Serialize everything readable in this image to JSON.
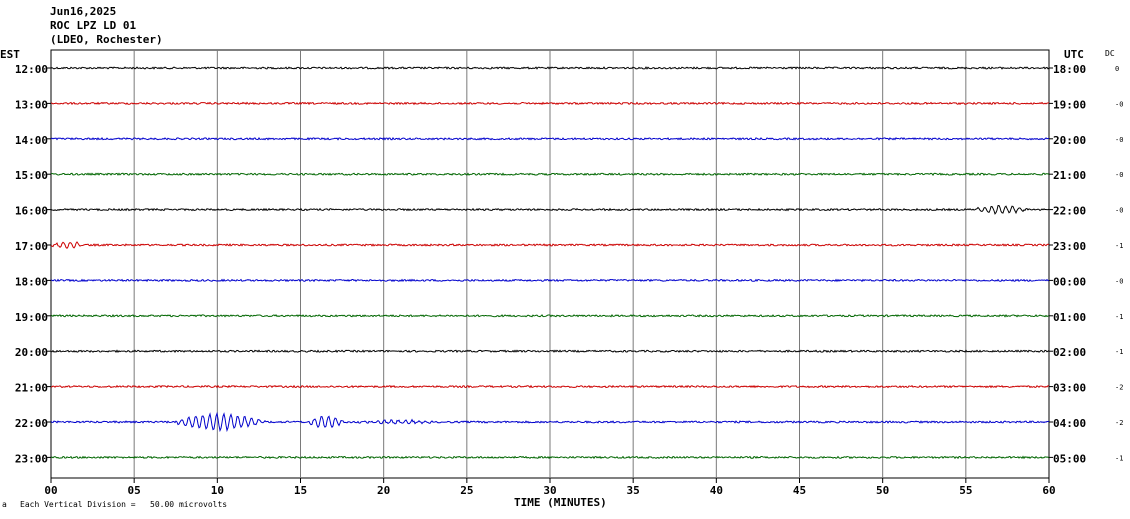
{
  "header": {
    "date": "Jun16,2025",
    "station": "ROC LPZ LD 01",
    "network": "(LDEO, Rochester)"
  },
  "left_axis_label": "EST",
  "right_axis_label": "UTC",
  "dc_label": "DC",
  "x_axis_label": "TIME (MINUTES)",
  "footer_note": "Each Vertical Division =   50.00 microvolts",
  "chart_data": {
    "type": "line",
    "xlabel": "TIME (MINUTES)",
    "xlim": [
      0,
      60
    ],
    "x_ticks": [
      "00",
      "05",
      "10",
      "15",
      "20",
      "25",
      "30",
      "35",
      "40",
      "45",
      "50",
      "55",
      "60"
    ],
    "grid": "vertical lines every 5 minutes",
    "vertical_division_microvolts": 50.0,
    "rows": [
      {
        "est": "12:00",
        "utc": "18:00",
        "dc": "0",
        "color": "#000000",
        "events": []
      },
      {
        "est": "13:00",
        "utc": "19:00",
        "dc": "-0",
        "color": "#cc0000",
        "events": []
      },
      {
        "est": "14:00",
        "utc": "20:00",
        "dc": "-0",
        "color": "#0000cc",
        "events": []
      },
      {
        "est": "15:00",
        "utc": "21:00",
        "dc": "-0",
        "color": "#006600",
        "events": []
      },
      {
        "est": "16:00",
        "utc": "22:00",
        "dc": "-0",
        "color": "#000000",
        "events": [
          {
            "start": 55.5,
            "end": 60,
            "amp": 4
          }
        ]
      },
      {
        "est": "17:00",
        "utc": "23:00",
        "dc": "-1",
        "color": "#cc0000",
        "events": [
          {
            "start": 0,
            "end": 3,
            "amp": 3
          }
        ]
      },
      {
        "est": "18:00",
        "utc": "00:00",
        "dc": "-0",
        "color": "#0000cc",
        "events": []
      },
      {
        "est": "19:00",
        "utc": "01:00",
        "dc": "-1",
        "color": "#006600",
        "events": []
      },
      {
        "est": "20:00",
        "utc": "02:00",
        "dc": "-1",
        "color": "#000000",
        "events": []
      },
      {
        "est": "21:00",
        "utc": "03:00",
        "dc": "-2",
        "color": "#cc0000",
        "events": []
      },
      {
        "est": "22:00",
        "utc": "04:00",
        "dc": "-2",
        "color": "#0000cc",
        "events": [
          {
            "start": 7.5,
            "end": 15.0,
            "amp": 8
          },
          {
            "start": 15.5,
            "end": 18.5,
            "amp": 6
          },
          {
            "start": 18.5,
            "end": 25,
            "amp": 1.8
          }
        ]
      },
      {
        "est": "23:00",
        "utc": "05:00",
        "dc": "-1",
        "color": "#006600",
        "events": []
      }
    ]
  }
}
